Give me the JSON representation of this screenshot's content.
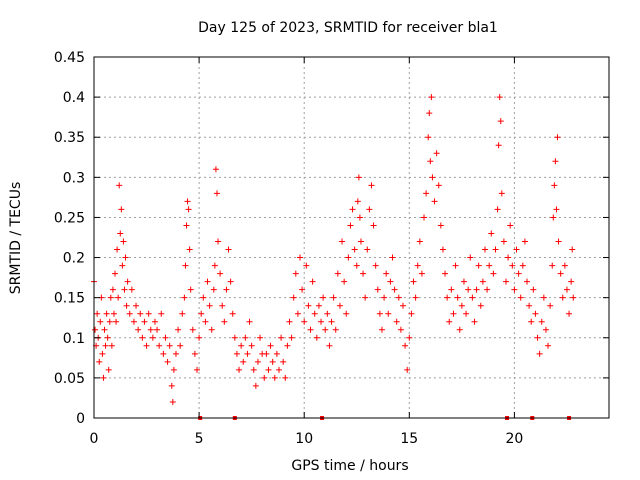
{
  "chart_data": {
    "type": "scatter",
    "title": "Day 125 of 2023, SRMTID for receiver bla1",
    "xlabel": "GPS time / hours",
    "ylabel": "SRMTID / TECUs",
    "xlim": [
      0,
      24.5
    ],
    "ylim": [
      0,
      0.45
    ],
    "xticks": [
      0,
      5,
      10,
      15,
      20
    ],
    "xtick_labels": [
      "0",
      "5",
      "10",
      "15",
      "20"
    ],
    "yticks": [
      0,
      0.05,
      0.1,
      0.15,
      0.2,
      0.25,
      0.3,
      0.35,
      0.4,
      0.45
    ],
    "ytick_labels": [
      "0",
      "0.05",
      "0.1",
      "0.15",
      "0.2",
      "0.25",
      "0.3",
      "0.35",
      "0.4",
      "0.45"
    ],
    "grid": true,
    "marker": "+",
    "color": "#ff0000",
    "series": [
      {
        "name": "SRMTID",
        "points": [
          [
            0.0,
            0.17
          ],
          [
            0.05,
            0.11
          ],
          [
            0.1,
            0.09
          ],
          [
            0.15,
            0.13
          ],
          [
            0.2,
            0.1
          ],
          [
            0.25,
            0.07
          ],
          [
            0.3,
            0.12
          ],
          [
            0.35,
            0.15
          ],
          [
            0.4,
            0.08
          ],
          [
            0.45,
            0.05
          ],
          [
            0.5,
            0.11
          ],
          [
            0.55,
            0.09
          ],
          [
            0.6,
            0.13
          ],
          [
            0.65,
            0.1
          ],
          [
            0.7,
            0.06
          ],
          [
            0.75,
            0.12
          ],
          [
            0.8,
            0.15
          ],
          [
            0.85,
            0.09
          ],
          [
            0.9,
            0.16
          ],
          [
            0.95,
            0.13
          ],
          [
            1.0,
            0.18
          ],
          [
            1.05,
            0.12
          ],
          [
            1.1,
            0.21
          ],
          [
            1.15,
            0.15
          ],
          [
            1.2,
            0.29
          ],
          [
            1.25,
            0.23
          ],
          [
            1.3,
            0.26
          ],
          [
            1.35,
            0.19
          ],
          [
            1.4,
            0.22
          ],
          [
            1.45,
            0.16
          ],
          [
            1.5,
            0.2
          ],
          [
            1.55,
            0.14
          ],
          [
            1.6,
            0.17
          ],
          [
            1.7,
            0.13
          ],
          [
            1.8,
            0.16
          ],
          [
            1.9,
            0.12
          ],
          [
            2.0,
            0.14
          ],
          [
            2.1,
            0.11
          ],
          [
            2.2,
            0.13
          ],
          [
            2.3,
            0.1
          ],
          [
            2.4,
            0.12
          ],
          [
            2.5,
            0.09
          ],
          [
            2.6,
            0.13
          ],
          [
            2.7,
            0.11
          ],
          [
            2.8,
            0.1
          ],
          [
            2.9,
            0.12
          ],
          [
            3.0,
            0.11
          ],
          [
            3.1,
            0.09
          ],
          [
            3.2,
            0.13
          ],
          [
            3.3,
            0.08
          ],
          [
            3.4,
            0.1
          ],
          [
            3.5,
            0.07
          ],
          [
            3.6,
            0.09
          ],
          [
            3.7,
            0.04
          ],
          [
            3.75,
            0.02
          ],
          [
            3.8,
            0.06
          ],
          [
            3.9,
            0.08
          ],
          [
            4.0,
            0.11
          ],
          [
            4.1,
            0.09
          ],
          [
            4.2,
            0.13
          ],
          [
            4.3,
            0.15
          ],
          [
            4.35,
            0.19
          ],
          [
            4.4,
            0.24
          ],
          [
            4.45,
            0.27
          ],
          [
            4.5,
            0.26
          ],
          [
            4.55,
            0.21
          ],
          [
            4.6,
            0.16
          ],
          [
            4.7,
            0.11
          ],
          [
            4.8,
            0.08
          ],
          [
            4.9,
            0.06
          ],
          [
            5.0,
            0.1
          ],
          [
            5.1,
            0.13
          ],
          [
            5.2,
            0.15
          ],
          [
            5.3,
            0.12
          ],
          [
            5.4,
            0.17
          ],
          [
            5.5,
            0.14
          ],
          [
            5.6,
            0.11
          ],
          [
            5.7,
            0.16
          ],
          [
            5.75,
            0.19
          ],
          [
            5.8,
            0.31
          ],
          [
            5.85,
            0.28
          ],
          [
            5.9,
            0.22
          ],
          [
            6.0,
            0.18
          ],
          [
            6.1,
            0.14
          ],
          [
            6.2,
            0.12
          ],
          [
            6.3,
            0.16
          ],
          [
            6.4,
            0.21
          ],
          [
            6.5,
            0.17
          ],
          [
            6.6,
            0.13
          ],
          [
            6.7,
            0.1
          ],
          [
            6.8,
            0.08
          ],
          [
            6.9,
            0.06
          ],
          [
            7.0,
            0.09
          ],
          [
            7.1,
            0.07
          ],
          [
            7.2,
            0.1
          ],
          [
            7.3,
            0.08
          ],
          [
            7.4,
            0.12
          ],
          [
            7.5,
            0.09
          ],
          [
            7.6,
            0.06
          ],
          [
            7.7,
            0.04
          ],
          [
            7.8,
            0.07
          ],
          [
            7.9,
            0.1
          ],
          [
            8.0,
            0.08
          ],
          [
            8.1,
            0.05
          ],
          [
            8.2,
            0.08
          ],
          [
            8.3,
            0.06
          ],
          [
            8.4,
            0.09
          ],
          [
            8.5,
            0.07
          ],
          [
            8.6,
            0.05
          ],
          [
            8.7,
            0.08
          ],
          [
            8.8,
            0.06
          ],
          [
            8.9,
            0.1
          ],
          [
            9.0,
            0.07
          ],
          [
            9.1,
            0.05
          ],
          [
            9.2,
            0.09
          ],
          [
            9.3,
            0.12
          ],
          [
            9.4,
            0.1
          ],
          [
            9.5,
            0.15
          ],
          [
            9.6,
            0.18
          ],
          [
            9.7,
            0.13
          ],
          [
            9.8,
            0.2
          ],
          [
            9.9,
            0.16
          ],
          [
            10.0,
            0.12
          ],
          [
            10.1,
            0.19
          ],
          [
            10.2,
            0.14
          ],
          [
            10.3,
            0.11
          ],
          [
            10.4,
            0.17
          ],
          [
            10.5,
            0.13
          ],
          [
            10.6,
            0.1
          ],
          [
            10.7,
            0.14
          ],
          [
            10.8,
            0.12
          ],
          [
            10.9,
            0.15
          ],
          [
            11.0,
            0.11
          ],
          [
            11.1,
            0.13
          ],
          [
            11.2,
            0.09
          ],
          [
            11.3,
            0.12
          ],
          [
            11.4,
            0.15
          ],
          [
            11.5,
            0.11
          ],
          [
            11.6,
            0.18
          ],
          [
            11.7,
            0.14
          ],
          [
            11.8,
            0.22
          ],
          [
            11.9,
            0.17
          ],
          [
            12.0,
            0.13
          ],
          [
            12.1,
            0.2
          ],
          [
            12.2,
            0.24
          ],
          [
            12.3,
            0.26
          ],
          [
            12.4,
            0.21
          ],
          [
            12.5,
            0.19
          ],
          [
            12.55,
            0.27
          ],
          [
            12.6,
            0.3
          ],
          [
            12.65,
            0.25
          ],
          [
            12.7,
            0.22
          ],
          [
            12.8,
            0.18
          ],
          [
            12.9,
            0.15
          ],
          [
            13.0,
            0.21
          ],
          [
            13.1,
            0.26
          ],
          [
            13.2,
            0.29
          ],
          [
            13.3,
            0.24
          ],
          [
            13.4,
            0.19
          ],
          [
            13.5,
            0.16
          ],
          [
            13.6,
            0.13
          ],
          [
            13.7,
            0.11
          ],
          [
            13.8,
            0.15
          ],
          [
            13.9,
            0.18
          ],
          [
            14.0,
            0.13
          ],
          [
            14.1,
            0.17
          ],
          [
            14.2,
            0.2
          ],
          [
            14.3,
            0.16
          ],
          [
            14.4,
            0.12
          ],
          [
            14.5,
            0.15
          ],
          [
            14.6,
            0.11
          ],
          [
            14.7,
            0.14
          ],
          [
            14.8,
            0.09
          ],
          [
            14.9,
            0.06
          ],
          [
            15.0,
            0.1
          ],
          [
            15.1,
            0.13
          ],
          [
            15.2,
            0.17
          ],
          [
            15.3,
            0.15
          ],
          [
            15.4,
            0.19
          ],
          [
            15.5,
            0.22
          ],
          [
            15.6,
            0.18
          ],
          [
            15.7,
            0.25
          ],
          [
            15.8,
            0.28
          ],
          [
            15.9,
            0.35
          ],
          [
            15.95,
            0.38
          ],
          [
            16.0,
            0.32
          ],
          [
            16.05,
            0.4
          ],
          [
            16.1,
            0.3
          ],
          [
            16.2,
            0.27
          ],
          [
            16.3,
            0.33
          ],
          [
            16.4,
            0.29
          ],
          [
            16.5,
            0.24
          ],
          [
            16.6,
            0.21
          ],
          [
            16.7,
            0.18
          ],
          [
            16.8,
            0.15
          ],
          [
            16.9,
            0.12
          ],
          [
            17.0,
            0.16
          ],
          [
            17.1,
            0.13
          ],
          [
            17.2,
            0.19
          ],
          [
            17.3,
            0.15
          ],
          [
            17.4,
            0.11
          ],
          [
            17.5,
            0.14
          ],
          [
            17.6,
            0.17
          ],
          [
            17.7,
            0.13
          ],
          [
            17.8,
            0.16
          ],
          [
            17.9,
            0.2
          ],
          [
            18.0,
            0.15
          ],
          [
            18.1,
            0.12
          ],
          [
            18.2,
            0.16
          ],
          [
            18.3,
            0.19
          ],
          [
            18.4,
            0.14
          ],
          [
            18.5,
            0.17
          ],
          [
            18.6,
            0.21
          ],
          [
            18.7,
            0.16
          ],
          [
            18.8,
            0.19
          ],
          [
            18.9,
            0.23
          ],
          [
            19.0,
            0.18
          ],
          [
            19.1,
            0.21
          ],
          [
            19.2,
            0.26
          ],
          [
            19.25,
            0.34
          ],
          [
            19.3,
            0.4
          ],
          [
            19.35,
            0.37
          ],
          [
            19.4,
            0.28
          ],
          [
            19.5,
            0.22
          ],
          [
            19.6,
            0.17
          ],
          [
            19.7,
            0.2
          ],
          [
            19.8,
            0.24
          ],
          [
            19.9,
            0.19
          ],
          [
            20.0,
            0.16
          ],
          [
            20.1,
            0.21
          ],
          [
            20.2,
            0.18
          ],
          [
            20.3,
            0.15
          ],
          [
            20.4,
            0.19
          ],
          [
            20.5,
            0.22
          ],
          [
            20.6,
            0.17
          ],
          [
            20.7,
            0.14
          ],
          [
            20.8,
            0.12
          ],
          [
            20.9,
            0.16
          ],
          [
            21.0,
            0.13
          ],
          [
            21.1,
            0.1
          ],
          [
            21.2,
            0.08
          ],
          [
            21.3,
            0.12
          ],
          [
            21.4,
            0.15
          ],
          [
            21.5,
            0.11
          ],
          [
            21.6,
            0.09
          ],
          [
            21.7,
            0.14
          ],
          [
            21.8,
            0.19
          ],
          [
            21.85,
            0.25
          ],
          [
            21.9,
            0.29
          ],
          [
            21.95,
            0.32
          ],
          [
            22.0,
            0.26
          ],
          [
            22.05,
            0.35
          ],
          [
            22.1,
            0.22
          ],
          [
            22.2,
            0.18
          ],
          [
            22.3,
            0.15
          ],
          [
            22.4,
            0.19
          ],
          [
            22.5,
            0.16
          ],
          [
            22.6,
            0.13
          ],
          [
            22.7,
            0.17
          ],
          [
            22.75,
            0.21
          ],
          [
            22.8,
            0.15
          ]
        ]
      }
    ],
    "gap_markers_x": [
      5.05,
      6.7,
      10.85,
      19.65,
      20.85,
      22.6
    ]
  }
}
